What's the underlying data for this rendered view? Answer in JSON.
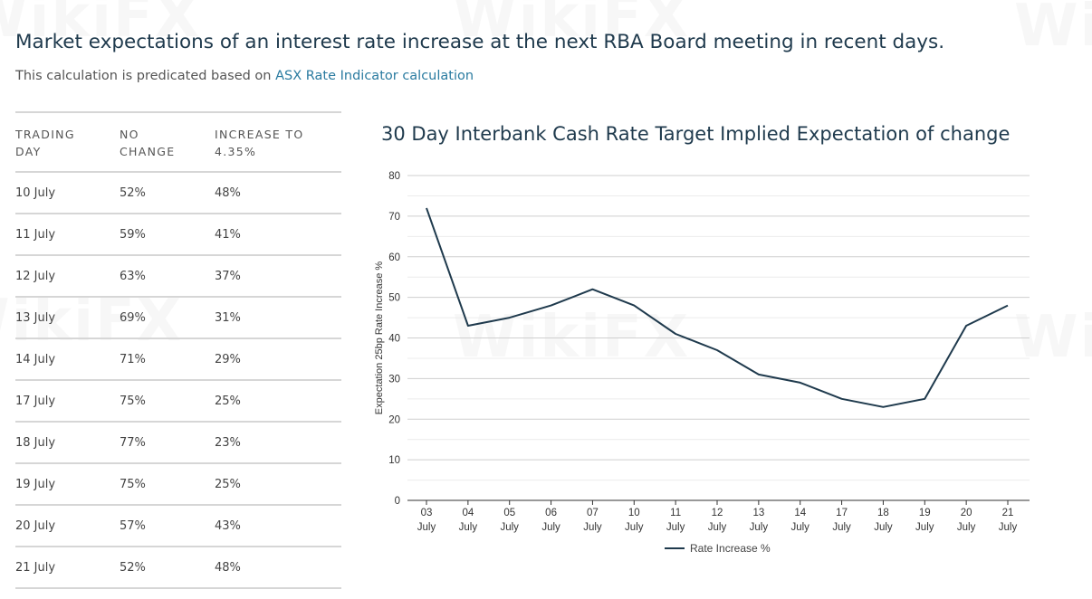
{
  "header": {
    "title": "Market expectations of an interest rate increase at the next RBA Board meeting in recent days.",
    "subtitle_prefix": "This calculation is predicated based on ",
    "subtitle_link": "ASX Rate Indicator calculation"
  },
  "watermark": {
    "text": "WikiFX"
  },
  "table": {
    "headers": [
      [
        "TRADING",
        "DAY"
      ],
      [
        "NO",
        "CHANGE"
      ],
      [
        "INCREASE TO",
        "4.35%"
      ]
    ],
    "rows": [
      [
        "10 July",
        "52%",
        "48%"
      ],
      [
        "11 July",
        "59%",
        "41%"
      ],
      [
        "12 July",
        "63%",
        "37%"
      ],
      [
        "13 July",
        "69%",
        "31%"
      ],
      [
        "14 July",
        "71%",
        "29%"
      ],
      [
        "17 July",
        "75%",
        "25%"
      ],
      [
        "18 July",
        "77%",
        "23%"
      ],
      [
        "19 July",
        "75%",
        "25%"
      ],
      [
        "20 July",
        "57%",
        "43%"
      ],
      [
        "21 July",
        "52%",
        "48%"
      ]
    ]
  },
  "chart_data": {
    "type": "line",
    "title": "30 Day Interbank Cash Rate Target Implied Expectation of change",
    "xlabel": "",
    "ylabel": "Expectation 25bp Rate Increase %",
    "categories": [
      [
        "03",
        "July"
      ],
      [
        "04",
        "July"
      ],
      [
        "05",
        "July"
      ],
      [
        "06",
        "July"
      ],
      [
        "07",
        "July"
      ],
      [
        "10",
        "July"
      ],
      [
        "11",
        "July"
      ],
      [
        "12",
        "July"
      ],
      [
        "13",
        "July"
      ],
      [
        "14",
        "July"
      ],
      [
        "17",
        "July"
      ],
      [
        "18",
        "July"
      ],
      [
        "19",
        "July"
      ],
      [
        "20",
        "July"
      ],
      [
        "21",
        "July"
      ]
    ],
    "series": [
      {
        "name": "Rate Increase %",
        "values": [
          72,
          43,
          45,
          48,
          52,
          48,
          41,
          37,
          31,
          29,
          25,
          23,
          25,
          43,
          48
        ]
      }
    ],
    "ylim": [
      0,
      80
    ],
    "yticks": [
      0,
      10,
      20,
      30,
      40,
      50,
      60,
      70,
      80
    ],
    "grid": true,
    "legend": "bottom",
    "colors": {
      "line": "#1f3a4d",
      "grid": "#dcdcdc",
      "axis": "#333333"
    }
  }
}
